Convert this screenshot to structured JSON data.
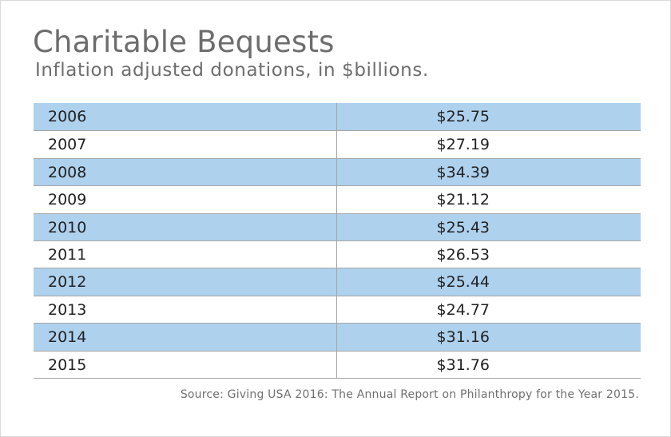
{
  "chart_data": {
    "type": "table",
    "title": "Charitable Bequests",
    "subtitle": "Inflation adjusted donations, in $billions.",
    "rows": [
      {
        "year": "2006",
        "value": "$25.75"
      },
      {
        "year": "2007",
        "value": "$27.19"
      },
      {
        "year": "2008",
        "value": "$34.39"
      },
      {
        "year": "2009",
        "value": "$21.12"
      },
      {
        "year": "2010",
        "value": "$25.43"
      },
      {
        "year": "2011",
        "value": "$26.53"
      },
      {
        "year": "2012",
        "value": "$25.44"
      },
      {
        "year": "2013",
        "value": "$24.77"
      },
      {
        "year": "2014",
        "value": "$31.16"
      },
      {
        "year": "2015",
        "value": "$31.76"
      }
    ],
    "source": "Source: Giving USA 2016: The Annual Report on Philanthropy for the Year 2015."
  },
  "colors": {
    "row_shade": "#aed1ee",
    "title": "#6d6d6d",
    "rule": "#a6a6a6"
  }
}
